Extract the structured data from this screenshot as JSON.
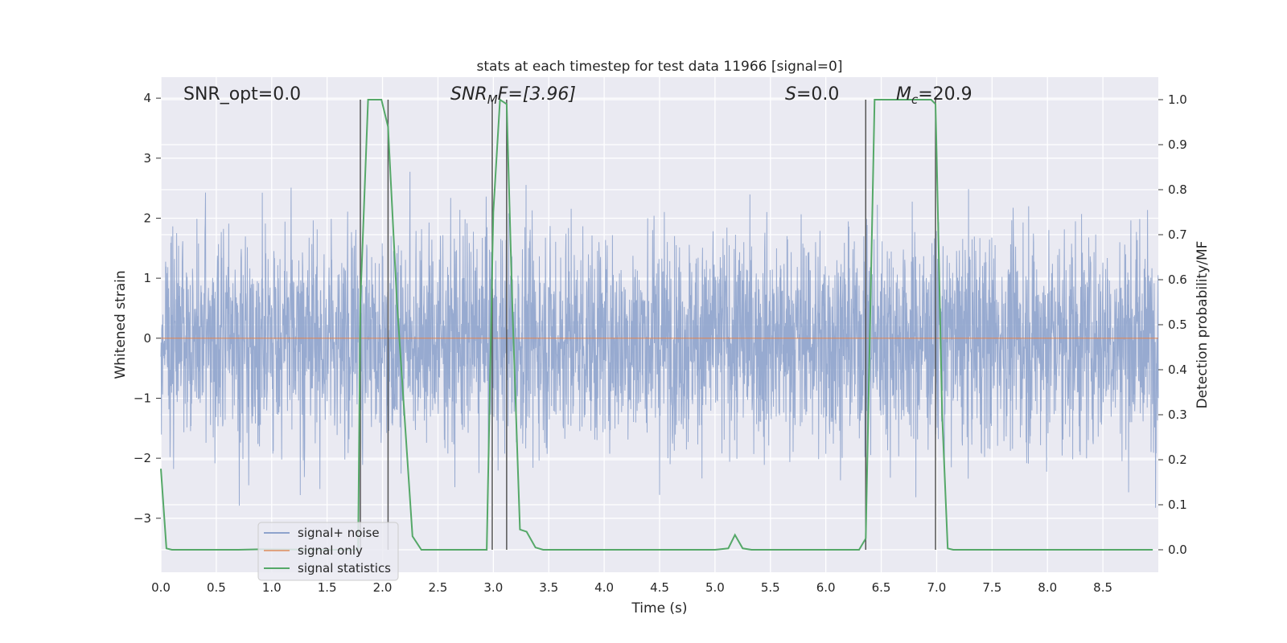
{
  "chart_data": {
    "type": "line",
    "title": "stats at each timestep for test data 11966 [signal=0]",
    "xlabel": "Time (s)",
    "ylabel": "Whitened strain",
    "ylabel_right": "Detection probability/MF",
    "xlim": [
      0,
      9.0
    ],
    "ylim": [
      -3.9,
      4.35
    ],
    "ylim_right": [
      -0.05,
      1.05
    ],
    "x_ticks": [
      "0.0",
      "0.5",
      "1.0",
      "1.5",
      "2.0",
      "2.5",
      "3.0",
      "3.5",
      "4.0",
      "4.5",
      "5.0",
      "5.5",
      "6.0",
      "6.5",
      "7.0",
      "7.5",
      "8.0",
      "8.5"
    ],
    "y_ticks": [
      "4",
      "3",
      "2",
      "1",
      "0",
      "−1",
      "−2",
      "−3"
    ],
    "y_right_ticks": [
      "1.0",
      "0.9",
      "0.8",
      "0.7",
      "0.6",
      "0.5",
      "0.4",
      "0.3",
      "0.2",
      "0.1",
      "0.0"
    ],
    "grid": true,
    "legend_position": "lower-left",
    "annotations": {
      "snr_opt": "SNR_opt=0.0",
      "snr_mf_base": "SNR",
      "snr_mf_sub": "M",
      "snr_mf_rest": "F=[3.96]",
      "s_symbol": "S",
      "s_value": "=0.0",
      "mc_symbol": "M",
      "mc_sub": "c",
      "mc_value": "=20.9"
    },
    "detection_windows": [
      [
        1.8,
        2.05
      ],
      [
        2.99,
        3.12
      ],
      [
        6.36,
        6.99
      ]
    ],
    "series": [
      {
        "name": "signal+ noise",
        "color": "#8ea3cc",
        "kind": "noise",
        "amplitude_range": [
          -3.6,
          3.8
        ]
      },
      {
        "name": "signal only",
        "color": "#dd8452",
        "x": [
          0,
          9.0
        ],
        "y": [
          0,
          0
        ]
      },
      {
        "name": "signal statistics",
        "color": "#55a868",
        "axis": "right",
        "x": [
          0.0,
          0.05,
          0.1,
          0.15,
          0.7,
          0.9,
          1.6,
          1.78,
          1.8,
          1.87,
          1.99,
          2.05,
          2.13,
          2.27,
          2.35,
          2.42,
          2.8,
          2.94,
          3.0,
          3.06,
          3.12,
          3.17,
          3.24,
          3.3,
          3.38,
          3.45,
          4.0,
          5.0,
          5.12,
          5.18,
          5.25,
          5.33,
          6.0,
          6.3,
          6.36,
          6.44,
          6.95,
          6.99,
          7.05,
          7.1,
          7.15,
          8.95
        ],
        "y": [
          0.18,
          0.003,
          0.0,
          0.0,
          0.0,
          0.001,
          0.0,
          0.0,
          0.55,
          1.0,
          1.0,
          0.94,
          0.55,
          0.03,
          0.0,
          0.0,
          0.0,
          0.0,
          0.75,
          1.0,
          0.99,
          0.55,
          0.045,
          0.04,
          0.005,
          0.0,
          0.0,
          0.0,
          0.003,
          0.033,
          0.003,
          0.0,
          0.0,
          0.0,
          0.025,
          1.0,
          1.0,
          0.99,
          0.3,
          0.003,
          0.0,
          0.0
        ]
      }
    ]
  }
}
